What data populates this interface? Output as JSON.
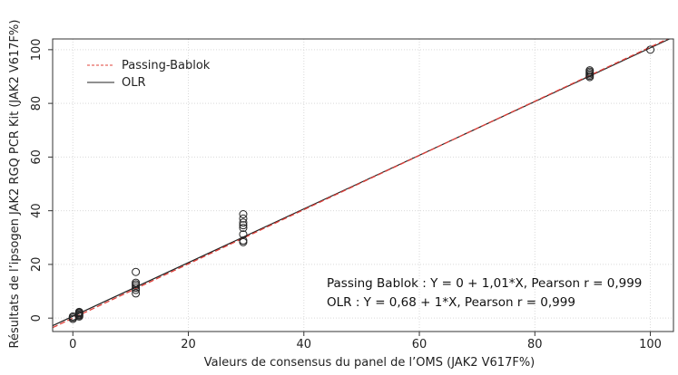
{
  "chart_data": {
    "type": "scatter",
    "xlabel": "Valeurs de consensus du panel de l’OMS (JAK2 V617F%)",
    "ylabel": "Résultats de l’ipsogen JAK2 RGQ PCR Kit (JAK2 V617F%)",
    "xlim": [
      -3.5,
      104
    ],
    "ylim": [
      -5,
      104
    ],
    "x_ticks": [
      0,
      20,
      40,
      60,
      80,
      100
    ],
    "y_ticks": [
      0,
      20,
      40,
      60,
      80,
      100
    ],
    "grid": true,
    "legend_position": "top-left",
    "legend": [
      {
        "label": "Passing-Bablok",
        "color": "#e0403a",
        "style": "dashed"
      },
      {
        "label": "OLR",
        "color": "#222222",
        "style": "solid"
      }
    ],
    "lines": [
      {
        "name": "Passing-Bablok",
        "intercept": 0,
        "slope": 1.01,
        "color": "#e0403a",
        "dash": true
      },
      {
        "name": "OLR",
        "intercept": 0.68,
        "slope": 1.0,
        "color": "#222222",
        "dash": false
      }
    ],
    "annotations": [
      "Passing Bablok : Y = 0 + 1,01*X, Pearson r = 0,999",
      "OLR : Y = 0,68 + 1*X, Pearson r = 0,999"
    ],
    "points": [
      {
        "x": 0,
        "y": 0.2
      },
      {
        "x": 0,
        "y": 0.6
      },
      {
        "x": 0,
        "y": -0.3
      },
      {
        "x": 1.1,
        "y": 0.6
      },
      {
        "x": 1.1,
        "y": 1.0
      },
      {
        "x": 1.1,
        "y": 1.3
      },
      {
        "x": 1.1,
        "y": 1.7
      },
      {
        "x": 1.1,
        "y": 2.0
      },
      {
        "x": 1.1,
        "y": 2.3
      },
      {
        "x": 10.9,
        "y": 9.2
      },
      {
        "x": 10.9,
        "y": 10.5
      },
      {
        "x": 10.9,
        "y": 11.3
      },
      {
        "x": 10.9,
        "y": 12.0
      },
      {
        "x": 10.9,
        "y": 12.6
      },
      {
        "x": 10.9,
        "y": 13.2
      },
      {
        "x": 10.9,
        "y": 17.2
      },
      {
        "x": 29.5,
        "y": 28.3
      },
      {
        "x": 29.5,
        "y": 28.9
      },
      {
        "x": 29.5,
        "y": 31.2
      },
      {
        "x": 29.5,
        "y": 33.6
      },
      {
        "x": 29.5,
        "y": 34.6
      },
      {
        "x": 29.5,
        "y": 35.6
      },
      {
        "x": 29.5,
        "y": 37.1
      },
      {
        "x": 29.5,
        "y": 38.7
      },
      {
        "x": 89.5,
        "y": 89.8
      },
      {
        "x": 89.5,
        "y": 90.3
      },
      {
        "x": 89.5,
        "y": 90.8
      },
      {
        "x": 89.5,
        "y": 91.3
      },
      {
        "x": 89.5,
        "y": 91.8
      },
      {
        "x": 89.5,
        "y": 92.3
      },
      {
        "x": 100,
        "y": 100
      }
    ]
  }
}
